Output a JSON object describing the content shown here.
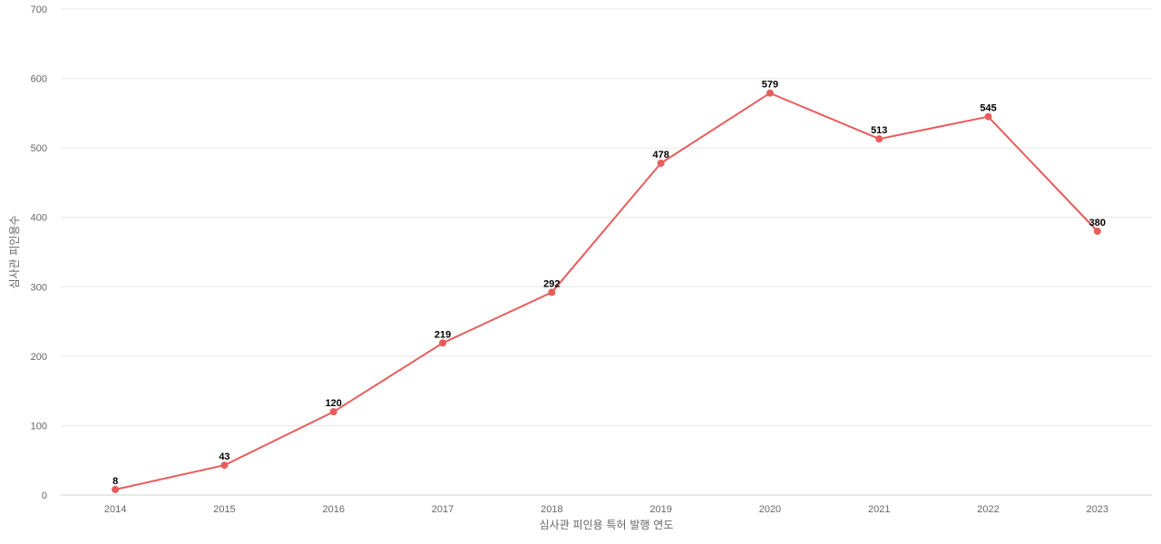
{
  "chart_data": {
    "type": "line",
    "title": "",
    "xlabel": "심사관 피인용 특허 발행 연도",
    "ylabel": "심사관 피인용수",
    "x": [
      "2014",
      "2015",
      "2016",
      "2017",
      "2018",
      "2019",
      "2020",
      "2021",
      "2022",
      "2023"
    ],
    "series": [
      {
        "values": [
          8,
          43,
          120,
          219,
          292,
          478,
          579,
          513,
          545,
          380
        ]
      }
    ],
    "ylim": [
      0,
      700
    ],
    "yticks": [
      0,
      100,
      200,
      300,
      400,
      500,
      600,
      700
    ],
    "grid": true,
    "legend": "none",
    "data_labels": true,
    "colors": {
      "series": "#e85c5c",
      "grid": "#e6e6e6",
      "tick_text": "#666666",
      "label_text": "#000000"
    }
  }
}
